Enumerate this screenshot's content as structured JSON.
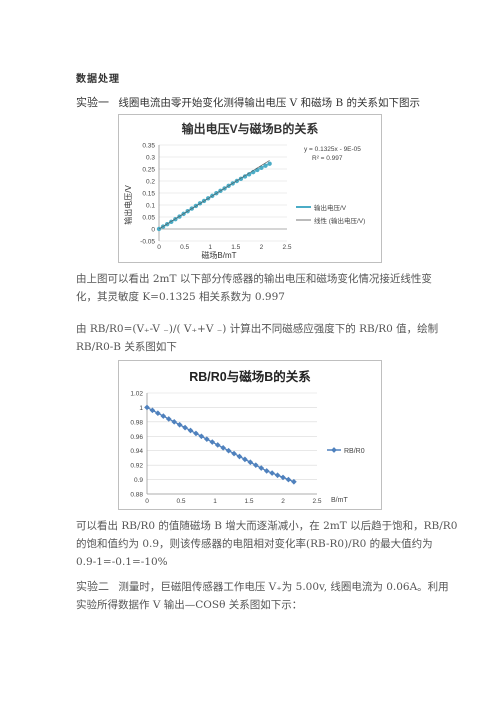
{
  "heading": "数据处理",
  "exp1_label": "实验一",
  "exp1_intro": "线圈电流由零开始变化测得输出电压 V 和磁场 B 的关系如下图示",
  "chart1": {
    "title": "输出电压V与磁场B的关系",
    "ylabel": "输出电压/V",
    "xlabel": "磁场B/mT",
    "equation": "y = 0.1325x - 9E-05",
    "r2": "R² = 0.997",
    "legend_series": "输出电压/V",
    "legend_trend": "线性 (输出电压/V)",
    "yticks": [
      "0.35",
      "0.3",
      "0.25",
      "0.2",
      "0.15",
      "0.1",
      "0.05",
      "0",
      "-0.05"
    ],
    "xticks": [
      "0",
      "0.5",
      "1",
      "1.5",
      "2",
      "2.5"
    ],
    "color": "#4bacc6"
  },
  "para1_line1": "由上图可以看出 2mT 以下部分传感器的输出电压和磁场变化情况接近线性变",
  "para1_line2": "化，其灵敏度 K=0.1325  相关系数为 0.997",
  "para2_line1": "由 RB/R0=(V₊-V ₋)/( V₊+V ₋) 计算出不同磁感应强度下的 RB/R0 值，绘制",
  "para2_line2": "RB/R0-B 关系图如下",
  "chart2": {
    "title": "RB/R0与磁场B的关系",
    "legend": "RB/R0",
    "xlabel": "B/mT",
    "yticks": [
      "1.02",
      "1",
      "0.98",
      "0.96",
      "0.94",
      "0.92",
      "0.9",
      "0.88"
    ],
    "xticks": [
      "0",
      "0.5",
      "1",
      "1.5",
      "2",
      "2.5"
    ],
    "color": "#4f81bd"
  },
  "para3_line1": "可以看出 RB/R0 的值随磁场 B 增大而逐渐减小，在 2mT 以后趋于饱和，RB/R0",
  "para3_line2": "的饱和值约为 0.9，则该传感器的电阻相对变化率(RB-R0)/R0 的最大值约为",
  "para3_line3": "0.9-1=-0.1=-10%",
  "exp2_label": "实验二",
  "exp2_line1": "测量时，巨磁阻传感器工作电压 V₊为 5.00v, 线圈电流为 0.06A。利用",
  "exp2_line2": "实验所得数据作 V 输出—COSθ 关系图如下示：",
  "chart_data": [
    {
      "type": "line",
      "title": "输出电压V与磁场B的关系",
      "xlabel": "磁场B/mT",
      "ylabel": "输出电压/V",
      "xlim": [
        0,
        2.5
      ],
      "ylim": [
        -0.05,
        0.35
      ],
      "series": [
        {
          "name": "输出电压/V",
          "x": [
            0.0,
            0.08,
            0.16,
            0.24,
            0.32,
            0.4,
            0.48,
            0.56,
            0.64,
            0.72,
            0.8,
            0.88,
            0.96,
            1.04,
            1.12,
            1.2,
            1.28,
            1.36,
            1.44,
            1.52,
            1.6,
            1.68,
            1.76,
            1.84,
            1.92,
            2.0,
            2.08,
            2.16
          ],
          "y": [
            0.0,
            0.01,
            0.02,
            0.03,
            0.041,
            0.052,
            0.063,
            0.074,
            0.085,
            0.096,
            0.107,
            0.117,
            0.128,
            0.138,
            0.149,
            0.159,
            0.169,
            0.18,
            0.19,
            0.2,
            0.209,
            0.219,
            0.228,
            0.237,
            0.246,
            0.255,
            0.264,
            0.272
          ]
        },
        {
          "name": "线性 (输出电压/V)",
          "x": [
            0,
            2.16
          ],
          "y": [
            -9e-05,
            0.286
          ]
        }
      ]
    },
    {
      "type": "line",
      "title": "RB/R0与磁场B的关系",
      "xlabel": "B/mT",
      "xlim": [
        0,
        2.5
      ],
      "ylim": [
        0.88,
        1.02
      ],
      "series": [
        {
          "name": "RB/R0",
          "x": [
            0.0,
            0.08,
            0.16,
            0.24,
            0.32,
            0.4,
            0.48,
            0.56,
            0.64,
            0.72,
            0.8,
            0.88,
            0.96,
            1.04,
            1.12,
            1.2,
            1.28,
            1.36,
            1.44,
            1.52,
            1.6,
            1.68,
            1.76,
            1.84,
            1.92,
            2.0,
            2.08,
            2.16
          ],
          "y": [
            1.0,
            0.996,
            0.992,
            0.988,
            0.984,
            0.98,
            0.976,
            0.972,
            0.968,
            0.964,
            0.96,
            0.956,
            0.952,
            0.948,
            0.944,
            0.94,
            0.936,
            0.932,
            0.928,
            0.924,
            0.92,
            0.916,
            0.912,
            0.909,
            0.906,
            0.903,
            0.9,
            0.897
          ]
        }
      ]
    }
  ]
}
